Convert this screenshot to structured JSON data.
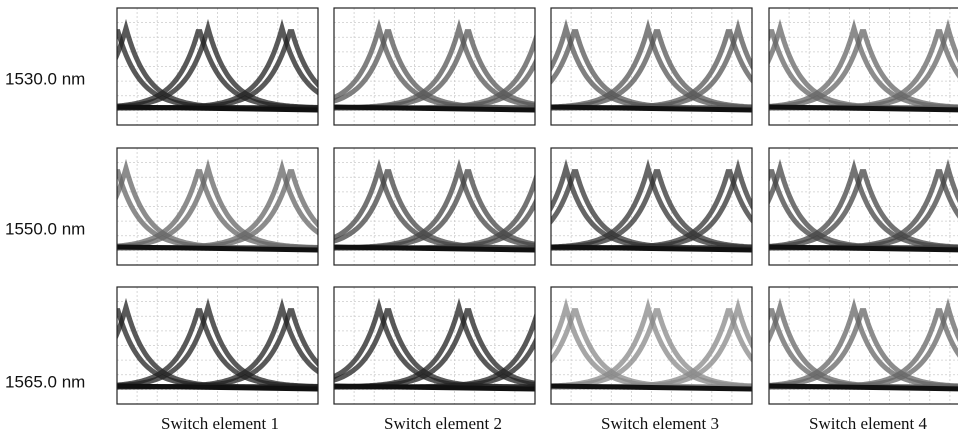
{
  "rows": [
    "1530.0 nm",
    "1550.0 nm",
    "1565.0 nm"
  ],
  "columns": [
    "Switch element 1",
    "Switch element 2",
    "Switch element 3",
    "Switch element 4"
  ]
}
